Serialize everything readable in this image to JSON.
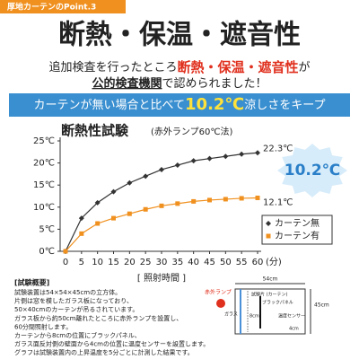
{
  "badge": "厚地カーテンのPoint.3",
  "headline": "断熱・保温・遮音性",
  "intro": {
    "line1_before": "追加検査を行ったところ",
    "line1_highlight": "断熱・保温・遮音性",
    "line1_after": "が",
    "line2_underlined": "公的検査機関",
    "line2_after": "で認められました！"
  },
  "banner": {
    "before": "カーテンが無い場合と比べて",
    "highlight": "10.2℃",
    "after": "涼しさをキープ"
  },
  "chart_data": {
    "type": "line",
    "title": "断熱性試験",
    "subtitle": "(赤外ランプ60℃法)",
    "x": [
      0,
      5,
      10,
      15,
      20,
      25,
      30,
      35,
      40,
      45,
      50,
      55,
      60
    ],
    "x_label": "[ 照射時間 ]",
    "x_unit": "(分)",
    "series": [
      {
        "name": "カーテン無",
        "color": "#333333",
        "marker": "diamond",
        "values": [
          0,
          7.5,
          11,
          13.5,
          15.5,
          17,
          18.5,
          19.5,
          20.5,
          21,
          21.5,
          22,
          22.3
        ],
        "end_label": "22.3℃"
      },
      {
        "name": "カーテン有",
        "color": "#f0901e",
        "marker": "square",
        "values": [
          0,
          4,
          6.3,
          7.5,
          8.5,
          9.5,
          10.3,
          10.8,
          11.3,
          11.6,
          11.8,
          12,
          12.1
        ],
        "end_label": "12.1℃"
      }
    ],
    "difference_label": "10.2℃",
    "xlim": [
      0,
      60
    ],
    "xticks": [
      0,
      5,
      10,
      15,
      20,
      25,
      30,
      35,
      40,
      45,
      50,
      55,
      60
    ],
    "ylim": [
      0,
      25
    ],
    "yticks": [
      {
        "value": 0,
        "label": "0℃"
      },
      {
        "value": 5,
        "label": "5℃"
      },
      {
        "value": 10,
        "label": "10℃"
      },
      {
        "value": 15,
        "label": "15℃"
      },
      {
        "value": 20,
        "label": "20℃"
      },
      {
        "value": 25,
        "label": "25℃"
      }
    ],
    "grid": false,
    "legend": "right"
  },
  "summary": {
    "heading": "[試験概要]",
    "lines": [
      "試験装置は54×54×45cmの立方体。",
      "片側は窓を模したガラス板になっており、",
      "50×40cmのカーテンが吊るされています。",
      "ガラス板から約50cm離れたところに赤外ランプを設置し、",
      "60分間照射します。",
      "カーテンから8cmの位置にブラックパネル、",
      "ガラス面反対側の壁面から4cmの位置に温度センサーを設置します。",
      "グラフは試験装置内の上昇温度を5分ごとに計測した結果です。"
    ]
  },
  "diagram": {
    "width": "54cm",
    "height": "45cm",
    "lamp": "赤外ランプ",
    "sample": "試験片 (カーテン)",
    "panel": "ブラックパネル",
    "sensor": "温度センサー",
    "gap_panel": "8cm",
    "gap_sensor": "4cm",
    "glass": "ガラス"
  }
}
